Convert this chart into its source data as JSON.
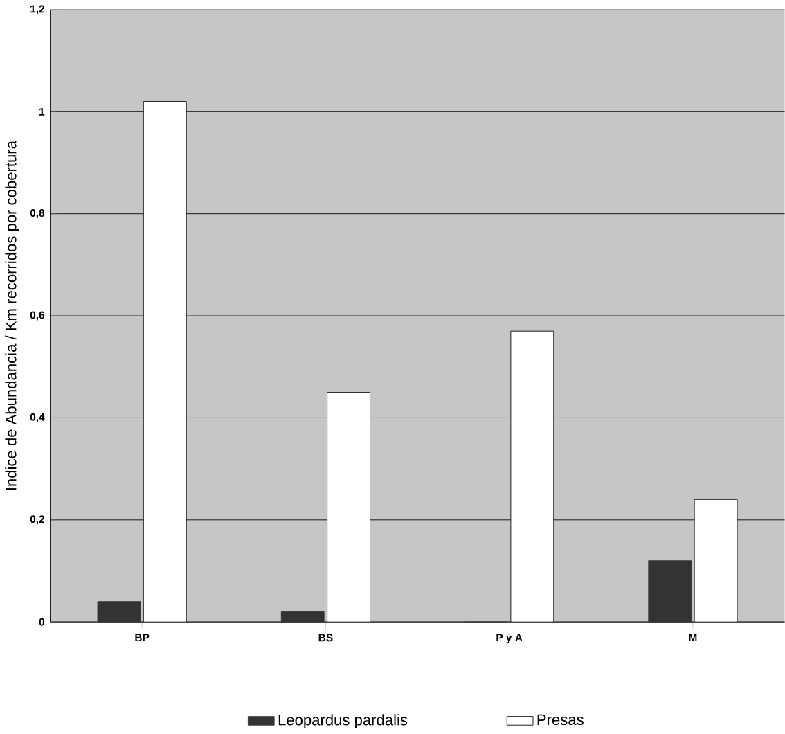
{
  "chart_data": {
    "type": "bar",
    "ylabel": "Indice de Abundancia / Km recorridos por cobertura",
    "categories": [
      "BP",
      "BS",
      "P y A",
      "M"
    ],
    "series": [
      {
        "name": "Leopardus pardalis",
        "color": "#333333",
        "values": [
          0.04,
          0.02,
          0,
          0.12
        ]
      },
      {
        "name": "Presas",
        "color": "#ffffff",
        "values": [
          1.02,
          0.45,
          0.57,
          0.24
        ]
      }
    ],
    "ylim": [
      0,
      1.2
    ],
    "yticks": [
      0,
      {
        "value": 0.2,
        "label": "0,2"
      },
      {
        "value": 0.4,
        "label": "0,4"
      },
      {
        "value": 0.6,
        "label": "0,6"
      },
      {
        "value": 0.8,
        "label": "0,8"
      },
      1,
      {
        "value": 1.2,
        "label": "1,2"
      }
    ],
    "grid": "y",
    "legend": "bottom"
  }
}
